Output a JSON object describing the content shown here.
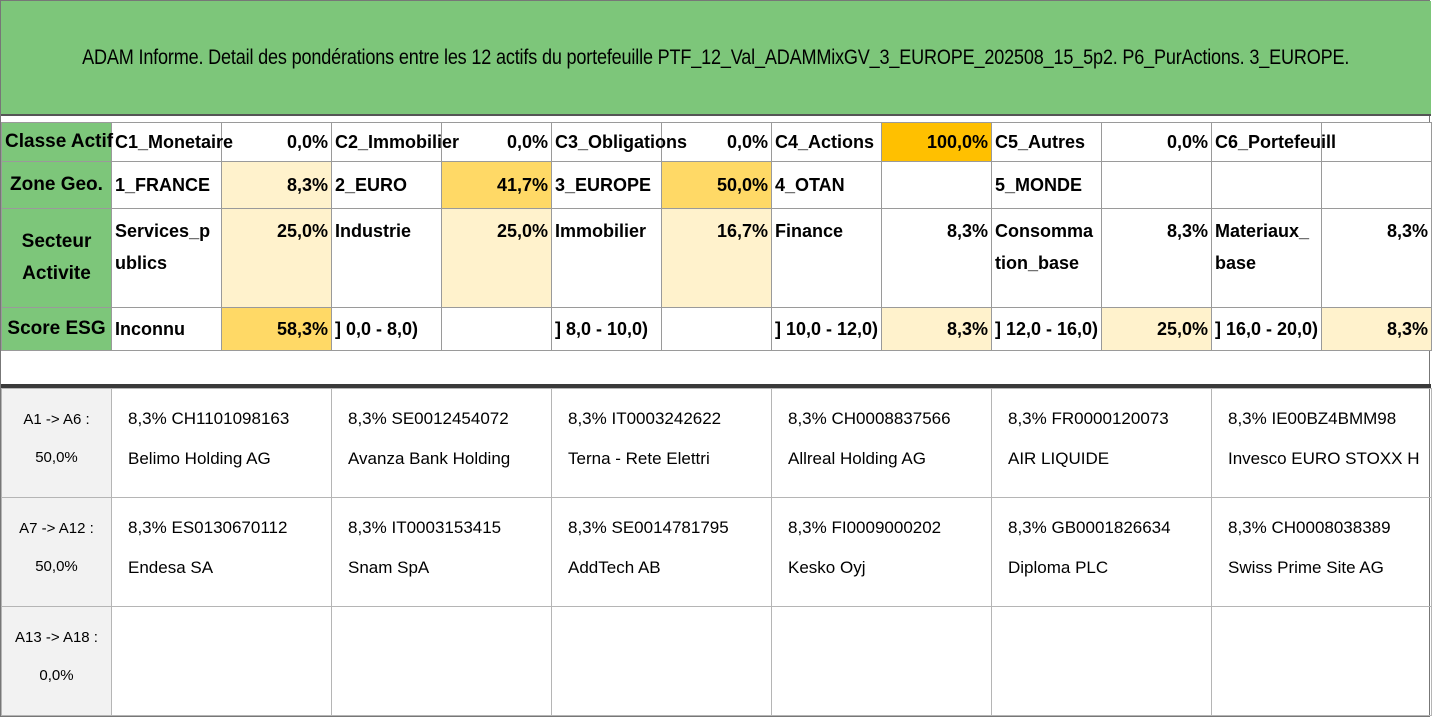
{
  "title": "ADAM Informe. Detail des pondérations entre les 12 actifs du portefeuille PTF_12_Val_ADAMMixGV_3_EUROPE_202508_15_5p2. P6_PurActions. 3_EUROPE.",
  "parameters": [
    {
      "header": "Classe Actif",
      "cells": [
        {
          "label": "C1_Monetaire",
          "value": "0,0%"
        },
        {
          "label": "C2_Immobilier",
          "value": "0,0%"
        },
        {
          "label": "C3_Obligations",
          "value": "0,0%"
        },
        {
          "label": "C4_Actions",
          "value": "100,0%"
        },
        {
          "label": "C5_Autres",
          "value": "0,0%"
        },
        {
          "label": "C6_Portefeuill",
          "value": ""
        }
      ]
    },
    {
      "header": "Zone Geo.",
      "cells": [
        {
          "label": "1_FRANCE",
          "value": "8,3%"
        },
        {
          "label": "2_EURO",
          "value": "41,7%"
        },
        {
          "label": "3_EUROPE",
          "value": "50,0%"
        },
        {
          "label": "4_OTAN",
          "value": ""
        },
        {
          "label": "5_MONDE",
          "value": ""
        },
        {
          "label": "",
          "value": ""
        }
      ]
    },
    {
      "header": "Secteur Activite",
      "cells": [
        {
          "label": "Services_publics",
          "value": "25,0%"
        },
        {
          "label": "Industrie",
          "value": "25,0%"
        },
        {
          "label": "Immobilier",
          "value": "16,7%"
        },
        {
          "label": "Finance",
          "value": "8,3%"
        },
        {
          "label": "Consommation_base",
          "value": "8,3%"
        },
        {
          "label": "Materiaux_base",
          "value": "8,3%"
        }
      ]
    },
    {
      "header": "Score ESG",
      "cells": [
        {
          "label": "Inconnu",
          "value": "58,3%"
        },
        {
          "label": "] 0,0 - 8,0)",
          "value": ""
        },
        {
          "label": "] 8,0 - 10,0)",
          "value": ""
        },
        {
          "label": "] 10,0 - 12,0)",
          "value": "8,3%"
        },
        {
          "label": "] 12,0 - 16,0)",
          "value": "25,0%"
        },
        {
          "label": "] 16,0 - 20,0)",
          "value": "8,3%"
        }
      ]
    }
  ],
  "highlight_colors": {
    "orange": "#ffc000",
    "yellow_strong": "#ffd966",
    "yellow_light": "#fff2cc",
    "header_green": "#7dc67a"
  },
  "asset_groups": [
    {
      "range": "A1 -> A6 :",
      "total": "50,0%",
      "assets": [
        {
          "weight": "8,3%",
          "isin": "CH1101098163",
          "name": "Belimo Holding AG"
        },
        {
          "weight": "8,3%",
          "isin": "SE0012454072",
          "name": "Avanza Bank Holding"
        },
        {
          "weight": "8,3%",
          "isin": "IT0003242622",
          "name": "Terna - Rete Elettri"
        },
        {
          "weight": "8,3%",
          "isin": "CH0008837566",
          "name": "Allreal Holding AG"
        },
        {
          "weight": "8,3%",
          "isin": "FR0000120073",
          "name": "AIR LIQUIDE"
        },
        {
          "weight": "8,3%",
          "isin": "IE00BZ4BMM98",
          "name": "Invesco EURO STOXX H"
        }
      ]
    },
    {
      "range": "A7 -> A12 :",
      "total": "50,0%",
      "assets": [
        {
          "weight": "8,3%",
          "isin": "ES0130670112",
          "name": "Endesa SA"
        },
        {
          "weight": "8,3%",
          "isin": "IT0003153415",
          "name": "Snam SpA"
        },
        {
          "weight": "8,3%",
          "isin": "SE0014781795",
          "name": "AddTech AB"
        },
        {
          "weight": "8,3%",
          "isin": "FI0009000202",
          "name": "Kesko Oyj"
        },
        {
          "weight": "8,3%",
          "isin": "GB0001826634",
          "name": "Diploma PLC"
        },
        {
          "weight": "8,3%",
          "isin": "CH0008038389",
          "name": "Swiss Prime Site AG"
        }
      ]
    },
    {
      "range": "A13 -> A18 :",
      "total": "0,0%",
      "assets": [
        {
          "weight": "",
          "isin": "",
          "name": ""
        },
        {
          "weight": "",
          "isin": "",
          "name": ""
        },
        {
          "weight": "",
          "isin": "",
          "name": ""
        },
        {
          "weight": "",
          "isin": "",
          "name": ""
        },
        {
          "weight": "",
          "isin": "",
          "name": ""
        },
        {
          "weight": "",
          "isin": "",
          "name": ""
        }
      ]
    }
  ]
}
